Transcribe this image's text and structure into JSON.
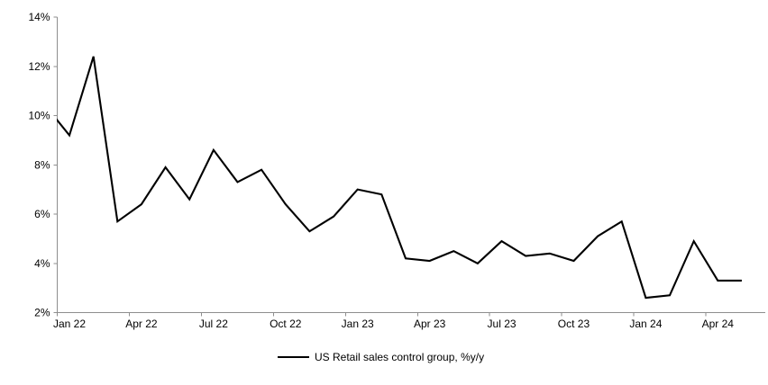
{
  "chart_data": {
    "type": "line",
    "title": "",
    "legend": {
      "position": "bottom",
      "label": "US Retail sales control group, %y/y"
    },
    "series": [
      {
        "name": "US Retail sales control group, %y/y",
        "color": "#000000",
        "x": [
          "Jan 22",
          "Feb 22",
          "Mar 22",
          "Apr 22",
          "May 22",
          "Jun 22",
          "Jul 22",
          "Aug 22",
          "Sep 22",
          "Oct 22",
          "Nov 22",
          "Dec 22",
          "Jan 23",
          "Feb 23",
          "Mar 23",
          "Apr 23",
          "May 23",
          "Jun 23",
          "Jul 23",
          "Aug 23",
          "Sep 23",
          "Oct 23",
          "Nov 23",
          "Dec 23",
          "Jan 24",
          "Feb 24",
          "Mar 24",
          "Apr 24",
          "May 24"
        ],
        "values": [
          9.2,
          12.4,
          5.7,
          6.4,
          7.9,
          6.6,
          8.6,
          7.3,
          7.8,
          6.4,
          5.3,
          5.9,
          7.0,
          6.8,
          4.2,
          4.1,
          4.5,
          4.0,
          4.9,
          4.3,
          4.4,
          4.1,
          5.1,
          5.7,
          2.6,
          2.7,
          4.9,
          3.3,
          3.3
        ]
      }
    ],
    "leading_clipped_point": {
      "x": "Dec 21",
      "value": 10.4
    },
    "x_axis": {
      "tick_labels": [
        "Jan 22",
        "Apr 22",
        "Jul 22",
        "Oct 22",
        "Jan 23",
        "Apr 23",
        "Jul 23",
        "Oct 23",
        "Jan 24",
        "Apr 24"
      ],
      "tick_interval_months": 3
    },
    "y_axis": {
      "min": 2,
      "max": 14,
      "step": 2,
      "unit": "%",
      "tick_labels": [
        "2%",
        "4%",
        "6%",
        "8%",
        "10%",
        "12%",
        "14%"
      ]
    },
    "grid": false,
    "colors": {
      "line": "#000000",
      "axis": "#8E8E8E",
      "text": "#000000",
      "background": "#FFFFFF"
    }
  }
}
